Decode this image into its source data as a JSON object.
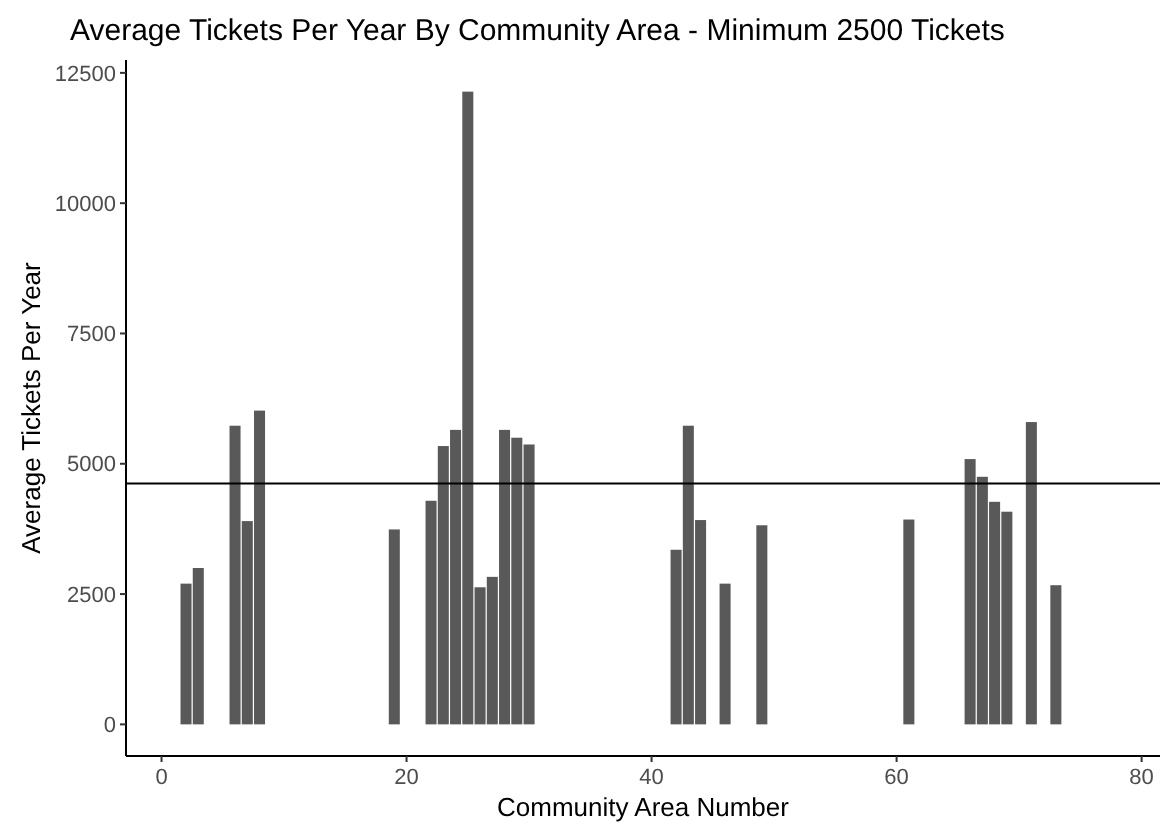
{
  "chart_data": {
    "type": "bar",
    "title": "Average Tickets Per Year By Community Area - Minimum 2500 Tickets",
    "xlabel": "Community Area Number",
    "ylabel": "Average Tickets Per Year",
    "x": [
      2,
      3,
      6,
      7,
      8,
      19,
      22,
      23,
      24,
      25,
      26,
      27,
      28,
      29,
      30,
      42,
      43,
      44,
      46,
      49,
      61,
      66,
      67,
      68,
      69,
      71,
      73
    ],
    "values": [
      2700,
      3000,
      5730,
      3900,
      6020,
      3740,
      4290,
      5340,
      5650,
      12140,
      2630,
      2830,
      5650,
      5500,
      5370,
      3350,
      5730,
      3920,
      2700,
      3820,
      3930,
      5090,
      4750,
      4270,
      4080,
      5800,
      2670
    ],
    "color": "#595959",
    "xlim": [
      -2.9,
      81.5
    ],
    "xticks": [
      0,
      20,
      40,
      60,
      80
    ],
    "ylim": [
      -607,
      12747
    ],
    "yticks": [
      0,
      2500,
      5000,
      7500,
      10000,
      12500
    ],
    "ref_lines": [
      {
        "axis": "y",
        "value": 4620,
        "color": "#000000"
      }
    ],
    "grid": false
  }
}
